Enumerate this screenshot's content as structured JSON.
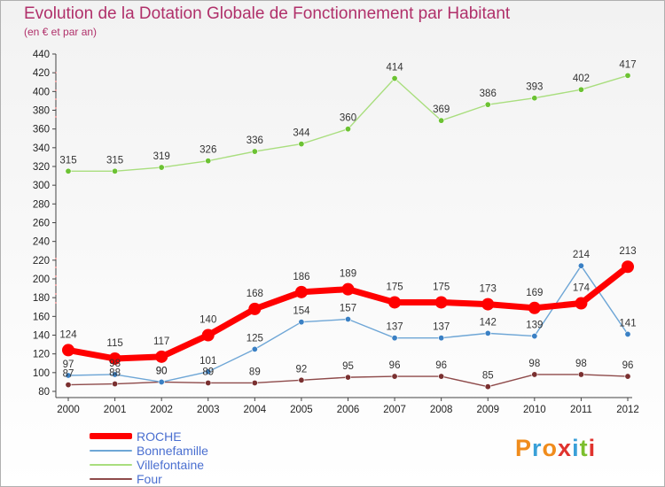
{
  "header": {
    "title": "Evolution de la Dotation Globale de Fonctionnement par Habitant",
    "subtitle": "(en € et par an)"
  },
  "logo": {
    "text": "Proxiti",
    "colors": [
      "#f08c1c",
      "#3aa0d8",
      "#f08c1c",
      "#e0332e",
      "#3aa0d8",
      "#7cbf2e",
      "#e0332e"
    ]
  },
  "chart_data": {
    "type": "line",
    "title": "Evolution de la Dotation Globale de Fonctionnement par Habitant",
    "subtitle": "(en € et par an)",
    "x": [
      2000,
      2001,
      2002,
      2003,
      2004,
      2005,
      2006,
      2007,
      2008,
      2009,
      2010,
      2011,
      2012
    ],
    "ylim": [
      80,
      440
    ],
    "ytick_step": 20,
    "grid": false,
    "legend_position": "bottom-left",
    "series": [
      {
        "name": "ROCHE",
        "color": "#ff0000",
        "width": 7,
        "values": [
          124,
          115,
          117,
          140,
          168,
          186,
          189,
          175,
          175,
          173,
          169,
          174,
          213
        ]
      },
      {
        "name": "Bonnefamille",
        "color": "#6ea6d6",
        "marker": "#3a80c4",
        "width": 1.4,
        "values": [
          97,
          98,
          90,
          101,
          125,
          154,
          157,
          137,
          137,
          142,
          139,
          214,
          141
        ]
      },
      {
        "name": "Villefontaine",
        "color": "#a9de7e",
        "marker": "#6cc233",
        "width": 1.4,
        "values": [
          315,
          315,
          319,
          326,
          336,
          344,
          360,
          414,
          369,
          386,
          393,
          402,
          417
        ]
      },
      {
        "name": "Four",
        "color": "#8e4a4a",
        "marker": "#7a3030",
        "width": 1.4,
        "values": [
          87,
          88,
          90,
          89,
          89,
          92,
          95,
          96,
          96,
          85,
          98,
          98,
          96
        ]
      }
    ]
  }
}
